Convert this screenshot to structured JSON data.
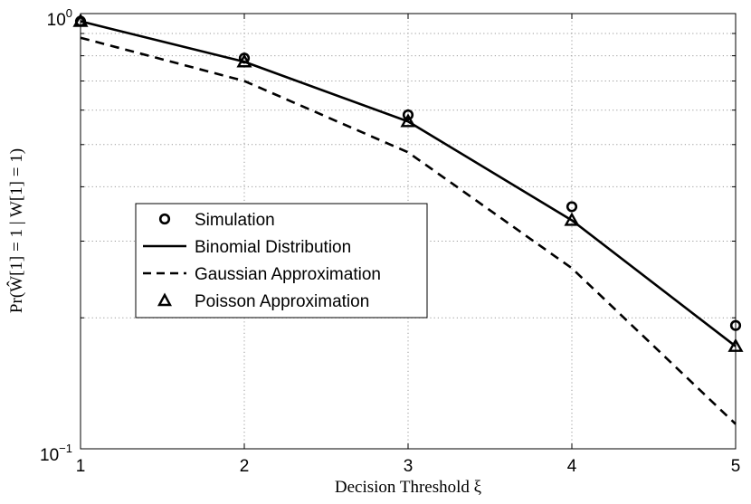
{
  "chart_data": {
    "type": "line",
    "title": "",
    "xlabel": "Decision Threshold ξ",
    "ylabel": "Pr(Ŵ[1] = 1 | W[1] = 1)",
    "x": [
      1,
      2,
      3,
      4,
      5
    ],
    "xlim": [
      1,
      5
    ],
    "ylim": [
      0.1,
      1.0
    ],
    "yscale": "log",
    "xticks": [
      "1",
      "2",
      "3",
      "4",
      "5"
    ],
    "yticks": [
      {
        "value": 1.0,
        "base": "10",
        "exp": "0"
      },
      {
        "value": 0.1,
        "base": "10",
        "exp": "−1"
      }
    ],
    "grid": true,
    "legend_position": "center-left",
    "series": [
      {
        "name": "Simulation",
        "style": "circle-markers",
        "values": [
          0.96,
          0.79,
          0.585,
          0.36,
          0.192
        ]
      },
      {
        "name": "Binomial Distribution",
        "style": "solid-line",
        "values": [
          0.96,
          0.775,
          0.565,
          0.335,
          0.172
        ]
      },
      {
        "name": "Gaussian Approximation",
        "style": "dashed-line",
        "values": [
          0.88,
          0.7,
          0.48,
          0.26,
          0.114
        ]
      },
      {
        "name": "Poisson Approximation",
        "style": "triangle-markers",
        "values": [
          0.96,
          0.775,
          0.565,
          0.335,
          0.172
        ]
      }
    ]
  }
}
